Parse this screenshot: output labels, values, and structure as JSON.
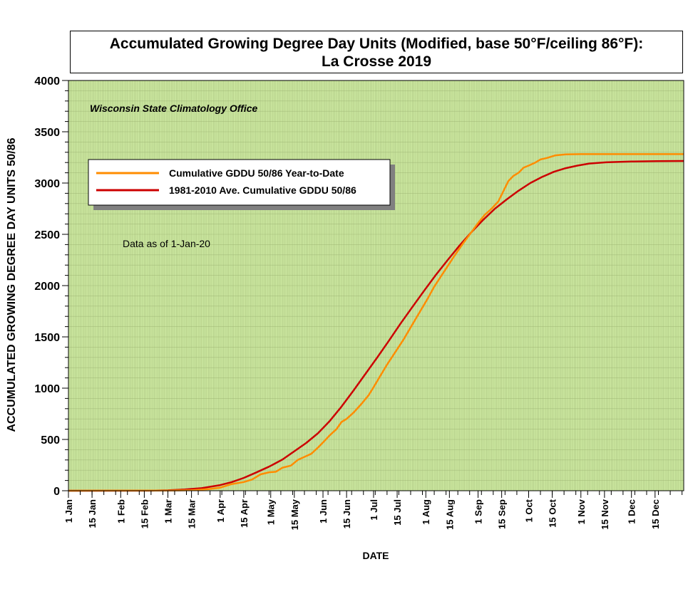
{
  "chart_data": {
    "type": "line",
    "title_line1": "Accumulated Growing Degree Day Units (Modified, base 50°F/ceiling 86°F):",
    "title_line2": "La Crosse 2019",
    "subtitle": "Wisconsin State Climatology Office",
    "annotation": "Data as of 1-Jan-20",
    "xlabel": "DATE",
    "ylabel": "ACCUMULATED GROWING DEGREE DAY UNITS 50/86",
    "ylim": [
      0,
      4000
    ],
    "yticks": [
      0,
      500,
      1000,
      1500,
      2000,
      2500,
      3000,
      3500,
      4000
    ],
    "xlim": [
      1,
      366
    ],
    "xticks": [
      {
        "day": 1,
        "label": "1 Jan"
      },
      {
        "day": 15,
        "label": "15 Jan"
      },
      {
        "day": 32,
        "label": "1 Feb"
      },
      {
        "day": 46,
        "label": "15 Feb"
      },
      {
        "day": 60,
        "label": "1 Mar"
      },
      {
        "day": 74,
        "label": "15 Mar"
      },
      {
        "day": 91,
        "label": "1 Apr"
      },
      {
        "day": 105,
        "label": "15 Apr"
      },
      {
        "day": 121,
        "label": "1 May"
      },
      {
        "day": 135,
        "label": "15 May"
      },
      {
        "day": 152,
        "label": "1 Jun"
      },
      {
        "day": 166,
        "label": "15 Jun"
      },
      {
        "day": 182,
        "label": "1 Jul"
      },
      {
        "day": 196,
        "label": "15 Jul"
      },
      {
        "day": 213,
        "label": "1 Aug"
      },
      {
        "day": 227,
        "label": "15 Aug"
      },
      {
        "day": 244,
        "label": "1 Sep"
      },
      {
        "day": 258,
        "label": "15 Sep"
      },
      {
        "day": 274,
        "label": "1 Oct"
      },
      {
        "day": 288,
        "label": "15 Oct"
      },
      {
        "day": 305,
        "label": "1 Nov"
      },
      {
        "day": 319,
        "label": "15 Nov"
      },
      {
        "day": 335,
        "label": "1 Dec"
      },
      {
        "day": 349,
        "label": "15 Dec"
      }
    ],
    "grid": true,
    "legend_placement": "upper-left",
    "background_color": "#cce8a0",
    "series": [
      {
        "name": "Cumulative GDDU 50/86 Year-to-Date",
        "color": "#ff8c00",
        "points": [
          [
            1,
            0
          ],
          [
            60,
            2
          ],
          [
            74,
            5
          ],
          [
            84,
            15
          ],
          [
            91,
            30
          ],
          [
            98,
            65
          ],
          [
            105,
            85
          ],
          [
            110,
            110
          ],
          [
            115,
            160
          ],
          [
            120,
            180
          ],
          [
            124,
            185
          ],
          [
            128,
            225
          ],
          [
            133,
            245
          ],
          [
            137,
            300
          ],
          [
            141,
            330
          ],
          [
            145,
            360
          ],
          [
            149,
            420
          ],
          [
            152,
            470
          ],
          [
            156,
            540
          ],
          [
            160,
            600
          ],
          [
            163,
            670
          ],
          [
            166,
            700
          ],
          [
            170,
            760
          ],
          [
            175,
            850
          ],
          [
            179,
            930
          ],
          [
            182,
            1010
          ],
          [
            186,
            1120
          ],
          [
            190,
            1230
          ],
          [
            196,
            1380
          ],
          [
            200,
            1480
          ],
          [
            205,
            1620
          ],
          [
            210,
            1760
          ],
          [
            214,
            1870
          ],
          [
            218,
            1990
          ],
          [
            222,
            2090
          ],
          [
            226,
            2190
          ],
          [
            230,
            2290
          ],
          [
            235,
            2410
          ],
          [
            240,
            2520
          ],
          [
            244,
            2610
          ],
          [
            248,
            2690
          ],
          [
            252,
            2750
          ],
          [
            256,
            2820
          ],
          [
            259,
            2920
          ],
          [
            262,
            3020
          ],
          [
            265,
            3070
          ],
          [
            268,
            3100
          ],
          [
            271,
            3150
          ],
          [
            274,
            3170
          ],
          [
            278,
            3200
          ],
          [
            281,
            3230
          ],
          [
            285,
            3245
          ],
          [
            290,
            3270
          ],
          [
            296,
            3280
          ],
          [
            305,
            3282
          ],
          [
            366,
            3282
          ]
        ]
      },
      {
        "name": "1981-2010 Ave. Cumulative GDDU 50/86",
        "color": "#cc0000",
        "points": [
          [
            1,
            0
          ],
          [
            50,
            1
          ],
          [
            60,
            4
          ],
          [
            70,
            12
          ],
          [
            80,
            25
          ],
          [
            91,
            55
          ],
          [
            98,
            85
          ],
          [
            105,
            125
          ],
          [
            112,
            175
          ],
          [
            120,
            235
          ],
          [
            128,
            305
          ],
          [
            135,
            385
          ],
          [
            142,
            465
          ],
          [
            149,
            560
          ],
          [
            156,
            680
          ],
          [
            163,
            820
          ],
          [
            170,
            975
          ],
          [
            177,
            1135
          ],
          [
            184,
            1295
          ],
          [
            191,
            1460
          ],
          [
            198,
            1630
          ],
          [
            205,
            1790
          ],
          [
            212,
            1950
          ],
          [
            219,
            2105
          ],
          [
            226,
            2250
          ],
          [
            233,
            2390
          ],
          [
            240,
            2520
          ],
          [
            247,
            2640
          ],
          [
            254,
            2750
          ],
          [
            261,
            2840
          ],
          [
            268,
            2925
          ],
          [
            275,
            3000
          ],
          [
            282,
            3060
          ],
          [
            289,
            3110
          ],
          [
            296,
            3145
          ],
          [
            303,
            3170
          ],
          [
            310,
            3190
          ],
          [
            320,
            3202
          ],
          [
            335,
            3210
          ],
          [
            350,
            3213
          ],
          [
            366,
            3215
          ]
        ]
      }
    ]
  }
}
